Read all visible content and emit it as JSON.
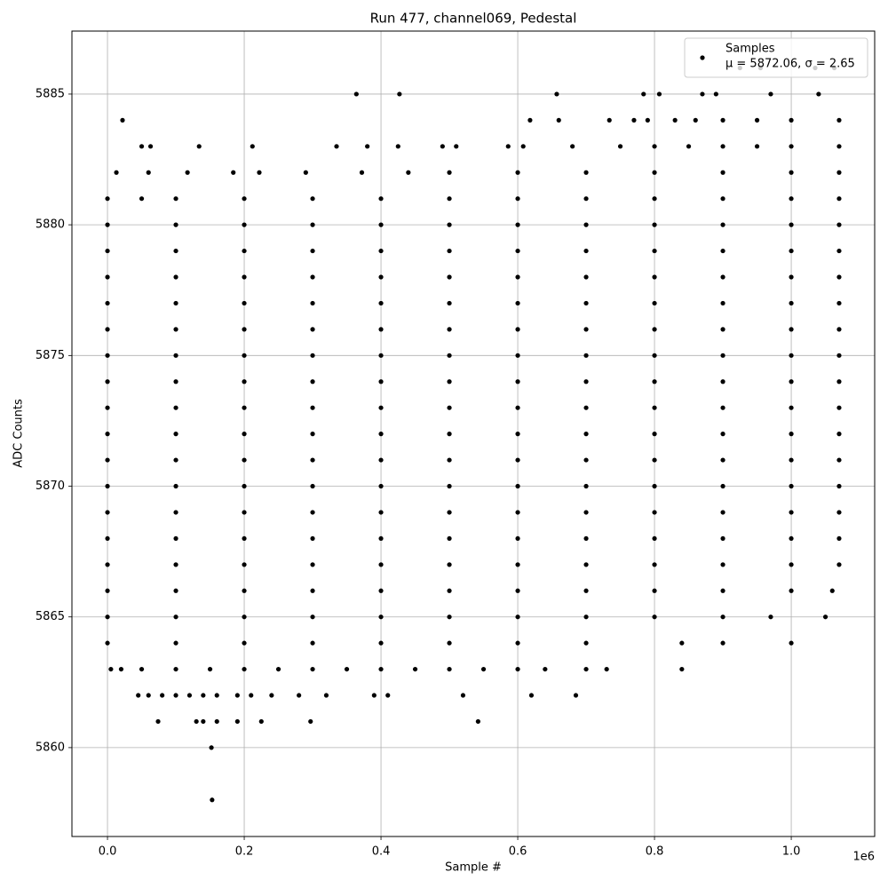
{
  "chart_data": {
    "type": "scatter",
    "title": "Run 477, channel069, Pedestal",
    "xlabel": "Sample #",
    "ylabel": "ADC Counts",
    "x_offset_label": "1e6",
    "xlim": [
      -0.052,
      1.122
    ],
    "ylim": [
      5856.6,
      5887.41
    ],
    "xticks": [
      {
        "value": 0,
        "label": "0.0"
      },
      {
        "value": 0.2,
        "label": "0.2"
      },
      {
        "value": 0.4,
        "label": "0.4"
      },
      {
        "value": 0.6,
        "label": "0.6"
      },
      {
        "value": 0.8,
        "label": "0.8"
      },
      {
        "value": 1.0,
        "label": "1.0"
      }
    ],
    "yticks": [
      5860,
      5865,
      5870,
      5875,
      5880,
      5885
    ],
    "grid": true,
    "legend": "upper right",
    "legend_note": "μ = 5872.06, σ = 2.65",
    "series": [
      {
        "name": "Samples",
        "color": "#000000",
        "x": [
          0,
          0.1,
          0.2,
          0.3,
          0.4,
          0.5,
          0.6,
          0.7,
          0.8,
          0.9,
          1.0,
          1.07,
          0,
          0.1,
          0.2,
          0.3,
          0.4,
          0.5,
          0.6,
          0.7,
          0.8,
          0.9,
          1.0,
          1.07,
          0,
          0.1,
          0.2,
          0.3,
          0.4,
          0.5,
          0.6,
          0.7,
          0.8,
          0.9,
          1.0,
          1.07,
          0,
          0.1,
          0.2,
          0.3,
          0.4,
          0.5,
          0.6,
          0.7,
          0.8,
          0.9,
          1.0,
          1.07,
          0,
          0.1,
          0.2,
          0.3,
          0.4,
          0.5,
          0.6,
          0.7,
          0.8,
          0.9,
          1.0,
          1.07,
          0,
          0.1,
          0.2,
          0.3,
          0.4,
          0.5,
          0.6,
          0.7,
          0.8,
          0.9,
          1.0,
          1.07,
          0,
          0.1,
          0.2,
          0.3,
          0.4,
          0.5,
          0.6,
          0.7,
          0.8,
          0.9,
          1.0,
          1.07,
          0,
          0.1,
          0.2,
          0.3,
          0.4,
          0.5,
          0.6,
          0.7,
          0.8,
          0.9,
          1.0,
          1.07,
          0,
          0.1,
          0.2,
          0.3,
          0.4,
          0.5,
          0.6,
          0.7,
          0.8,
          0.9,
          1.0,
          1.07,
          0,
          0.1,
          0.2,
          0.3,
          0.4,
          0.5,
          0.6,
          0.7,
          0.8,
          0.9,
          1.0,
          1.07,
          0,
          0.1,
          0.2,
          0.3,
          0.4,
          0.5,
          0.6,
          0.7,
          0.8,
          0.9,
          1.0,
          1.07,
          0,
          0.1,
          0.2,
          0.3,
          0.4,
          0.5,
          0.6,
          0.7,
          0.8,
          0.9,
          1.0,
          1.07,
          0,
          0.1,
          0.2,
          0.3,
          0.4,
          0.5,
          0.6,
          0.7,
          0.8,
          0.9,
          1.0,
          1.07,
          0,
          0.1,
          0.2,
          0.3,
          0.4,
          0.5,
          0.6,
          0.7,
          0.8,
          0.9,
          1.0,
          1.07,
          0,
          0.1,
          0.2,
          0.3,
          0.4,
          0.5,
          0.6,
          0.7,
          0.8,
          0.9,
          1.0,
          1.06,
          0,
          0.1,
          0.2,
          0.3,
          0.4,
          0.5,
          0.6,
          0.7,
          0.8,
          0.9,
          0.97,
          1.05,
          0,
          0.1,
          0.2,
          0.3,
          0.4,
          0.5,
          0.6,
          0.7,
          0.84,
          0.9,
          1.0,
          0,
          0.05,
          0.1,
          0.2,
          0.3,
          0.4,
          0.5,
          0.6,
          0.7,
          0.8,
          0.9,
          1.0,
          1.07,
          0.013,
          0.06,
          0.117,
          0.184,
          0.222,
          0.29,
          0.372,
          0.44,
          0.5,
          0.6,
          0.7,
          0.8,
          0.9,
          1.0,
          1.07,
          0.05,
          0.063,
          0.134,
          0.212,
          0.335,
          0.38,
          0.425,
          0.49,
          0.51,
          0.586,
          0.608,
          0.68,
          0.75,
          0.8,
          0.85,
          0.9,
          0.95,
          1.0,
          1.07,
          0.022,
          0.618,
          0.66,
          0.734,
          0.77,
          0.79,
          0.83,
          0.86,
          0.9,
          0.95,
          1.0,
          1.07,
          0.364,
          0.427,
          0.657,
          0.784,
          0.807,
          0.87,
          0.89,
          0.97,
          1.04,
          0.925,
          0.955,
          1.035,
          1.063,
          0.005,
          0.02,
          0.05,
          0.1,
          0.15,
          0.2,
          0.25,
          0.3,
          0.35,
          0.4,
          0.45,
          0.5,
          0.55,
          0.6,
          0.64,
          0.7,
          0.73,
          0.84,
          0.045,
          0.06,
          0.08,
          0.1,
          0.12,
          0.14,
          0.16,
          0.19,
          0.21,
          0.24,
          0.28,
          0.32,
          0.39,
          0.41,
          0.52,
          0.62,
          0.685,
          0.074,
          0.13,
          0.14,
          0.16,
          0.19,
          0.225,
          0.297,
          0.542,
          0.152,
          0.153
        ],
        "y": [
          5880,
          5880,
          5880,
          5880,
          5880,
          5880,
          5880,
          5880,
          5880,
          5880,
          5880,
          5880,
          5879,
          5879,
          5879,
          5879,
          5879,
          5879,
          5879,
          5879,
          5879,
          5879,
          5879,
          5879,
          5878,
          5878,
          5878,
          5878,
          5878,
          5878,
          5878,
          5878,
          5878,
          5878,
          5878,
          5878,
          5877,
          5877,
          5877,
          5877,
          5877,
          5877,
          5877,
          5877,
          5877,
          5877,
          5877,
          5877,
          5876,
          5876,
          5876,
          5876,
          5876,
          5876,
          5876,
          5876,
          5876,
          5876,
          5876,
          5876,
          5875,
          5875,
          5875,
          5875,
          5875,
          5875,
          5875,
          5875,
          5875,
          5875,
          5875,
          5875,
          5874,
          5874,
          5874,
          5874,
          5874,
          5874,
          5874,
          5874,
          5874,
          5874,
          5874,
          5874,
          5873,
          5873,
          5873,
          5873,
          5873,
          5873,
          5873,
          5873,
          5873,
          5873,
          5873,
          5873,
          5872,
          5872,
          5872,
          5872,
          5872,
          5872,
          5872,
          5872,
          5872,
          5872,
          5872,
          5872,
          5871,
          5871,
          5871,
          5871,
          5871,
          5871,
          5871,
          5871,
          5871,
          5871,
          5871,
          5871,
          5870,
          5870,
          5870,
          5870,
          5870,
          5870,
          5870,
          5870,
          5870,
          5870,
          5870,
          5870,
          5869,
          5869,
          5869,
          5869,
          5869,
          5869,
          5869,
          5869,
          5869,
          5869,
          5869,
          5869,
          5868,
          5868,
          5868,
          5868,
          5868,
          5868,
          5868,
          5868,
          5868,
          5868,
          5868,
          5868,
          5867,
          5867,
          5867,
          5867,
          5867,
          5867,
          5867,
          5867,
          5867,
          5867,
          5867,
          5867,
          5866,
          5866,
          5866,
          5866,
          5866,
          5866,
          5866,
          5866,
          5866,
          5866,
          5866,
          5866,
          5865,
          5865,
          5865,
          5865,
          5865,
          5865,
          5865,
          5865,
          5865,
          5865,
          5865,
          5865,
          5864,
          5864,
          5864,
          5864,
          5864,
          5864,
          5864,
          5864,
          5864,
          5864,
          5864,
          5881,
          5881,
          5881,
          5881,
          5881,
          5881,
          5881,
          5881,
          5881,
          5881,
          5881,
          5881,
          5881,
          5882,
          5882,
          5882,
          5882,
          5882,
          5882,
          5882,
          5882,
          5882,
          5882,
          5882,
          5882,
          5882,
          5882,
          5882,
          5883,
          5883,
          5883,
          5883,
          5883,
          5883,
          5883,
          5883,
          5883,
          5883,
          5883,
          5883,
          5883,
          5883,
          5883,
          5883,
          5883,
          5883,
          5883,
          5884,
          5884,
          5884,
          5884,
          5884,
          5884,
          5884,
          5884,
          5884,
          5884,
          5884,
          5884,
          5885,
          5885,
          5885,
          5885,
          5885,
          5885,
          5885,
          5885,
          5885,
          5886,
          5886,
          5886,
          5886,
          5863,
          5863,
          5863,
          5863,
          5863,
          5863,
          5863,
          5863,
          5863,
          5863,
          5863,
          5863,
          5863,
          5863,
          5863,
          5863,
          5863,
          5863,
          5862,
          5862,
          5862,
          5862,
          5862,
          5862,
          5862,
          5862,
          5862,
          5862,
          5862,
          5862,
          5862,
          5862,
          5862,
          5862,
          5862,
          5861,
          5861,
          5861,
          5861,
          5861,
          5861,
          5861,
          5861,
          5860,
          5858
        ]
      }
    ]
  }
}
